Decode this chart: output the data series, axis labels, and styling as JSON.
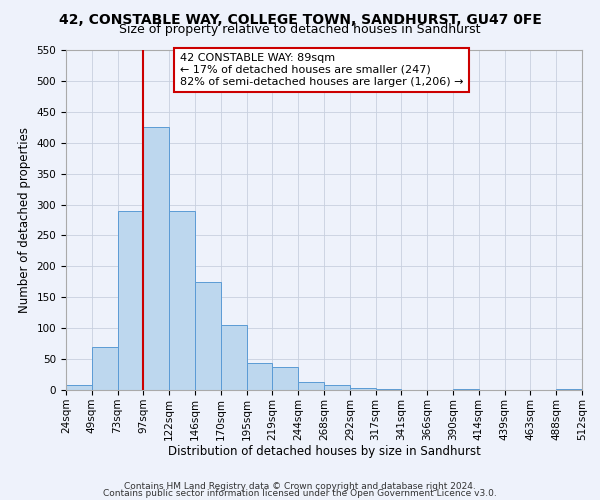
{
  "title": "42, CONSTABLE WAY, COLLEGE TOWN, SANDHURST, GU47 0FE",
  "subtitle": "Size of property relative to detached houses in Sandhurst",
  "xlabel": "Distribution of detached houses by size in Sandhurst",
  "ylabel": "Number of detached properties",
  "bar_values": [
    8,
    70,
    290,
    425,
    290,
    175,
    105,
    43,
    38,
    13,
    8,
    3,
    1,
    0,
    0,
    1,
    0,
    0,
    0,
    2
  ],
  "bin_labels": [
    "24sqm",
    "49sqm",
    "73sqm",
    "97sqm",
    "122sqm",
    "146sqm",
    "170sqm",
    "195sqm",
    "219sqm",
    "244sqm",
    "268sqm",
    "292sqm",
    "317sqm",
    "341sqm",
    "366sqm",
    "390sqm",
    "414sqm",
    "439sqm",
    "463sqm",
    "488sqm",
    "512sqm"
  ],
  "bar_color": "#bdd7ee",
  "bar_edge_color": "#5b9bd5",
  "vline_x_index": 3,
  "vline_color": "#cc0000",
  "annotation_title": "42 CONSTABLE WAY: 89sqm",
  "annotation_line1": "← 17% of detached houses are smaller (247)",
  "annotation_line2": "82% of semi-detached houses are larger (1,206) →",
  "annotation_box_facecolor": "#ffffff",
  "annotation_box_edgecolor": "#cc0000",
  "ylim": [
    0,
    550
  ],
  "yticks": [
    0,
    50,
    100,
    150,
    200,
    250,
    300,
    350,
    400,
    450,
    500,
    550
  ],
  "footer1": "Contains HM Land Registry data © Crown copyright and database right 2024.",
  "footer2": "Contains public sector information licensed under the Open Government Licence v3.0.",
  "background_color": "#eef2fb",
  "grid_color": "#c8d0df",
  "title_fontsize": 10,
  "subtitle_fontsize": 9,
  "axis_label_fontsize": 8.5,
  "tick_fontsize": 7.5,
  "annotation_fontsize": 8,
  "footer_fontsize": 6.5
}
